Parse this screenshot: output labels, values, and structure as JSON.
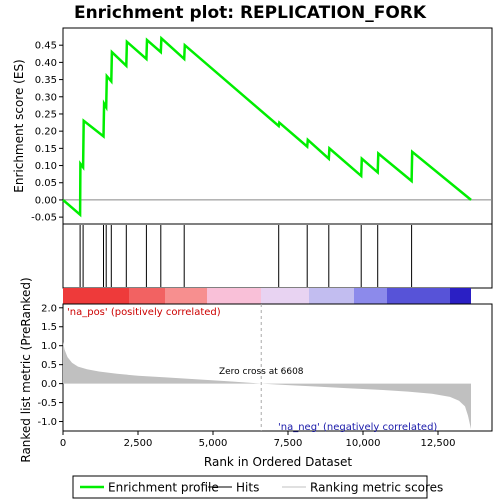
{
  "chart_data": {
    "type": "line",
    "title": "Enrichment plot: REPLICATION_FORK",
    "top_panel": {
      "ylabel": "Enrichment score (ES)",
      "ylim": [
        -0.07,
        0.5
      ],
      "yticks": [
        -0.05,
        0.0,
        0.05,
        0.1,
        0.15,
        0.2,
        0.25,
        0.3,
        0.35,
        0.4,
        0.45
      ],
      "ytick_labels": [
        "-0.05",
        "0.00",
        "0.05",
        "0.10",
        "0.15",
        "0.20",
        "0.25",
        "0.30",
        "0.35",
        "0.40",
        "0.45"
      ],
      "series": [
        {
          "name": "Enrichment profile",
          "color": "#00ee00",
          "points": [
            [
              0,
              0.0
            ],
            [
              570,
              -0.043
            ],
            [
              580,
              0.105
            ],
            [
              670,
              0.095
            ],
            [
              690,
              0.23
            ],
            [
              1350,
              0.185
            ],
            [
              1370,
              0.28
            ],
            [
              1440,
              0.27
            ],
            [
              1460,
              0.36
            ],
            [
              1610,
              0.345
            ],
            [
              1630,
              0.43
            ],
            [
              2110,
              0.39
            ],
            [
              2130,
              0.46
            ],
            [
              2780,
              0.41
            ],
            [
              2800,
              0.465
            ],
            [
              3260,
              0.43
            ],
            [
              3280,
              0.47
            ],
            [
              4040,
              0.41
            ],
            [
              4060,
              0.45
            ],
            [
              7190,
              0.215
            ],
            [
              7210,
              0.225
            ],
            [
              8140,
              0.155
            ],
            [
              8160,
              0.175
            ],
            [
              8860,
              0.12
            ],
            [
              8880,
              0.15
            ],
            [
              9940,
              0.07
            ],
            [
              9960,
              0.12
            ],
            [
              10490,
              0.08
            ],
            [
              10510,
              0.135
            ],
            [
              11620,
              0.055
            ],
            [
              11640,
              0.14
            ],
            [
              13600,
              0.0
            ]
          ]
        }
      ],
      "hits": [
        570,
        670,
        1350,
        1440,
        1610,
        2110,
        2780,
        3260,
        4040,
        7190,
        8140,
        8860,
        9940,
        10490,
        11620
      ]
    },
    "bottom_panel": {
      "ylabel": "Ranked list metric (PreRanked)",
      "xlabel": "Rank in Ordered Dataset",
      "xlim": [
        0,
        13600
      ],
      "ylim": [
        -1.25,
        2.1
      ],
      "xticks": [
        0,
        2500,
        5000,
        7500,
        10000,
        12500
      ],
      "xtick_labels": [
        "0",
        "2,500",
        "5,000",
        "7,500",
        "10,000",
        "12,500"
      ],
      "yticks": [
        -1.0,
        -0.5,
        0.0,
        0.5,
        1.0,
        1.5,
        2.0
      ],
      "ytick_labels": [
        "-1.0",
        "-0.5",
        "0.0",
        "0.5",
        "1.0",
        "1.5",
        "2.0"
      ],
      "metric_curve": [
        [
          0,
          1.1
        ],
        [
          50,
          0.9
        ],
        [
          150,
          0.7
        ],
        [
          300,
          0.55
        ],
        [
          500,
          0.45
        ],
        [
          800,
          0.38
        ],
        [
          1200,
          0.32
        ],
        [
          1800,
          0.26
        ],
        [
          2500,
          0.21
        ],
        [
          3500,
          0.16
        ],
        [
          4500,
          0.11
        ],
        [
          5500,
          0.06
        ],
        [
          6608,
          0.0
        ],
        [
          7500,
          -0.04
        ],
        [
          8500,
          -0.08
        ],
        [
          9500,
          -0.12
        ],
        [
          10500,
          -0.16
        ],
        [
          11500,
          -0.21
        ],
        [
          12300,
          -0.27
        ],
        [
          12900,
          -0.35
        ],
        [
          13200,
          -0.45
        ],
        [
          13400,
          -0.6
        ],
        [
          13500,
          -0.85
        ],
        [
          13600,
          -1.2
        ]
      ],
      "zero_cross": 6608,
      "zero_cross_label": "Zero cross at 6608",
      "pos_label": "'na_pos' (positively correlated)",
      "neg_label": "'na_neg' (negatively correlated)"
    },
    "color_bar": [
      {
        "from": 0,
        "to": 2200,
        "color": "#ee3a3a"
      },
      {
        "from": 2200,
        "to": 3400,
        "color": "#f26262"
      },
      {
        "from": 3400,
        "to": 4800,
        "color": "#f78f8f"
      },
      {
        "from": 4800,
        "to": 6600,
        "color": "#f9c0d8"
      },
      {
        "from": 6600,
        "to": 8200,
        "color": "#e8d3f2"
      },
      {
        "from": 8200,
        "to": 9700,
        "color": "#c2bdf0"
      },
      {
        "from": 9700,
        "to": 10800,
        "color": "#8c8aeb"
      },
      {
        "from": 10800,
        "to": 12900,
        "color": "#5753d8"
      },
      {
        "from": 12900,
        "to": 13600,
        "color": "#2a1fc4"
      }
    ],
    "legend": [
      {
        "label": "Enrichment profile",
        "color": "#00ee00",
        "kind": "line-thick"
      },
      {
        "label": "Hits",
        "color": "#000000",
        "kind": "line"
      },
      {
        "label": "Ranking metric scores",
        "color": "#c0c0c0",
        "kind": "line"
      }
    ]
  }
}
